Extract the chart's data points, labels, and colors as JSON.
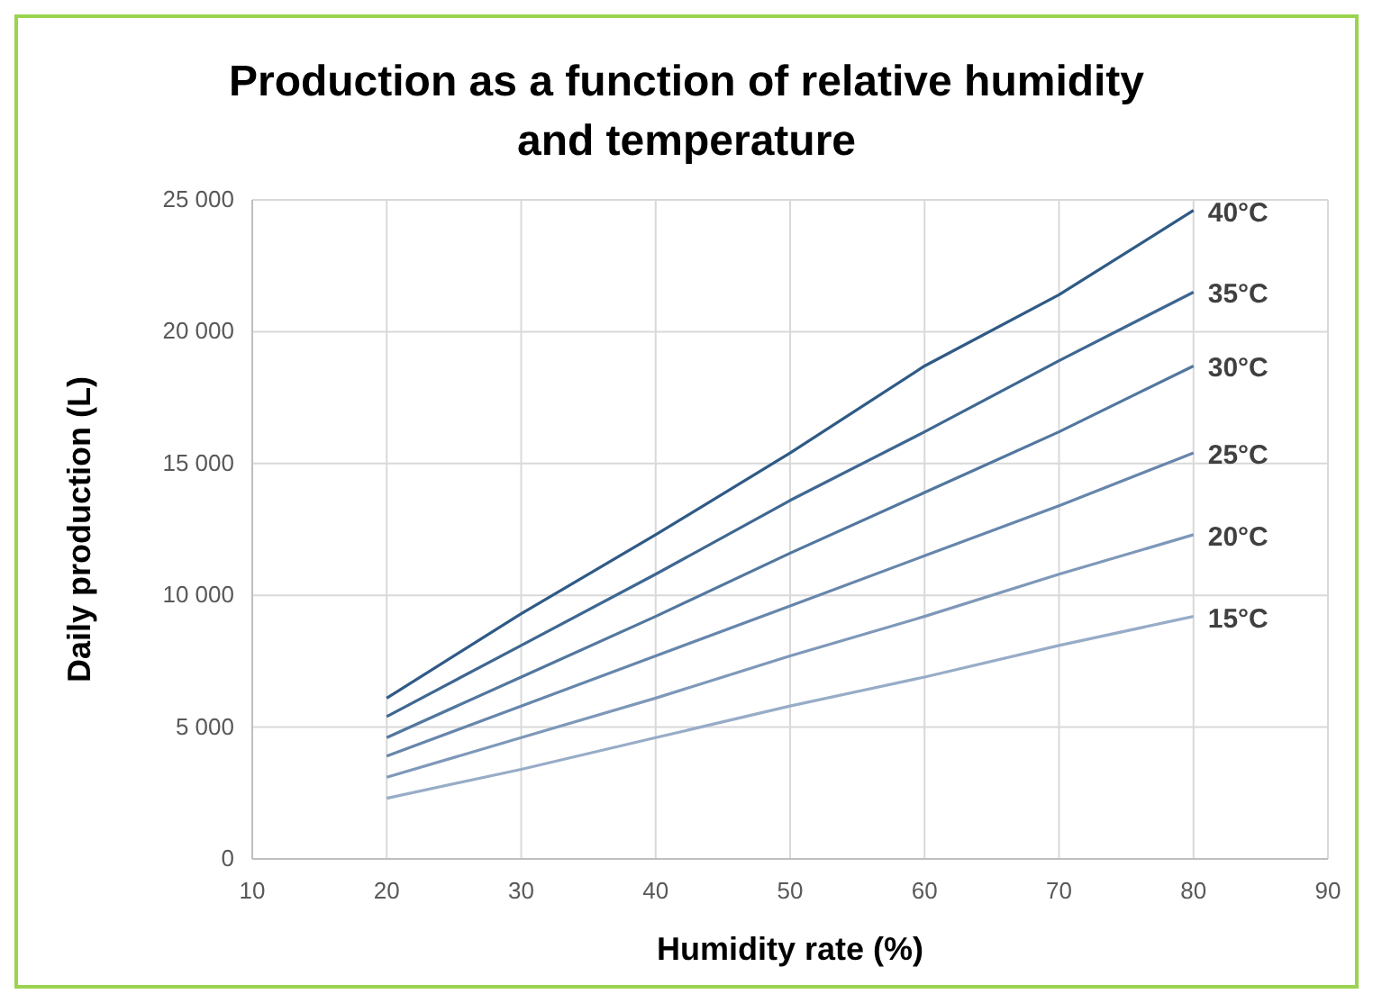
{
  "chart_data": {
    "type": "line",
    "title": "Production as a function of relative humidity and temperature",
    "xlabel": "Humidity rate (%)",
    "ylabel": "Daily production (L)",
    "x": [
      20,
      30,
      40,
      50,
      60,
      70,
      80
    ],
    "xlim": [
      10,
      90
    ],
    "xticks": [
      10,
      20,
      30,
      40,
      50,
      60,
      70,
      80,
      90
    ],
    "ylim": [
      0,
      25000
    ],
    "yticks": [
      0,
      {
        "value": 5000,
        "label": "5 000"
      },
      {
        "value": 10000,
        "label": "10 000"
      },
      {
        "value": 15000,
        "label": "15 000"
      },
      {
        "value": 20000,
        "label": "20 000"
      },
      {
        "value": 25000,
        "label": "25 000"
      }
    ],
    "grid": true,
    "legend": false,
    "marker": "none",
    "line_style": "solid",
    "series": [
      {
        "name": "40°C",
        "color": "#2f5a86",
        "values": [
          6100,
          9300,
          12300,
          15400,
          18700,
          21400,
          24600
        ]
      },
      {
        "name": "35°C",
        "color": "#3e6792",
        "values": [
          5400,
          8100,
          10800,
          13600,
          16200,
          18900,
          21500
        ]
      },
      {
        "name": "30°C",
        "color": "#52779f",
        "values": [
          4600,
          6900,
          9200,
          11600,
          13900,
          16200,
          18700
        ]
      },
      {
        "name": "25°C",
        "color": "#6786ac",
        "values": [
          3900,
          5800,
          7700,
          9600,
          11500,
          13400,
          15400
        ]
      },
      {
        "name": "20°C",
        "color": "#7e98b9",
        "values": [
          3100,
          4600,
          6100,
          7700,
          9200,
          10800,
          12300
        ]
      },
      {
        "name": "15°C",
        "color": "#97acc7",
        "values": [
          2300,
          3400,
          4600,
          5800,
          6900,
          8100,
          9200
        ]
      }
    ]
  }
}
